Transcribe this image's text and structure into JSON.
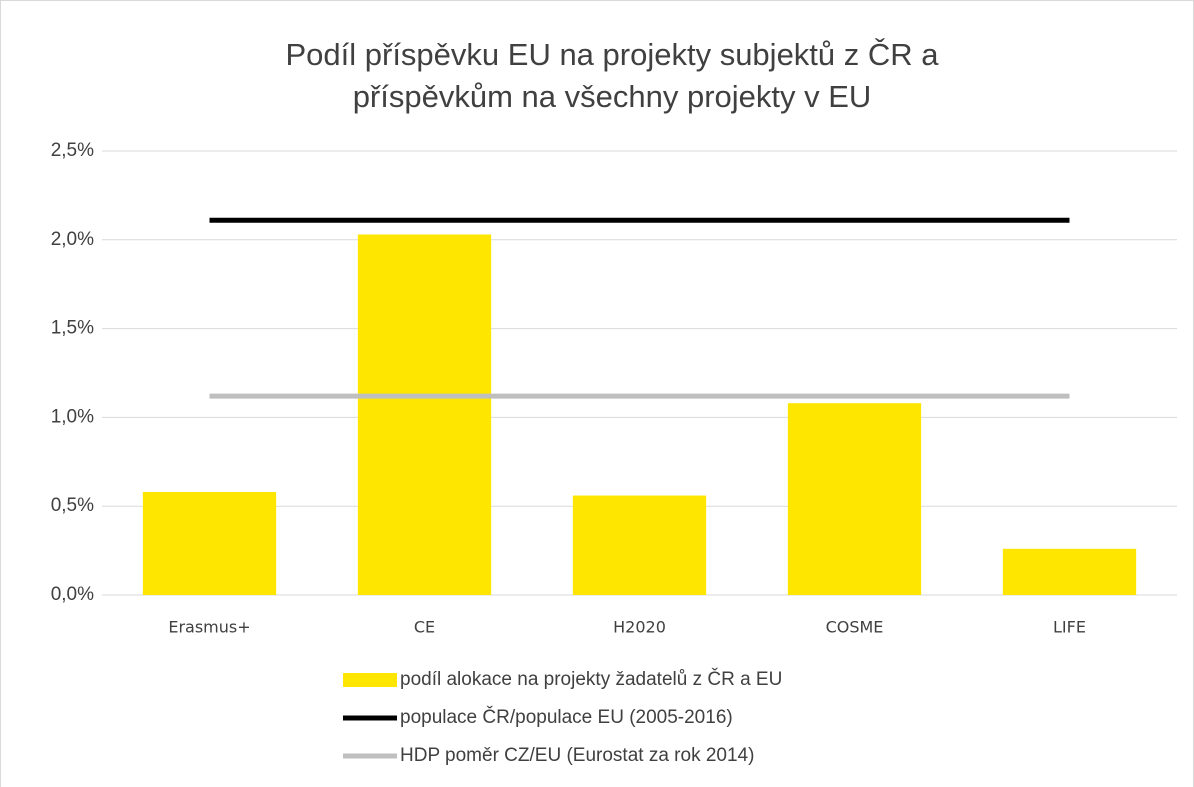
{
  "chart_data": {
    "type": "bar",
    "title": [
      "Podíl příspěvku EU na projekty subjektů z ČR a",
      "příspěvkům na všechny projekty v EU"
    ],
    "categories": [
      "Erasmus+",
      "CE",
      "H2020",
      "COSME",
      "LIFE"
    ],
    "series": [
      {
        "name": "podíl alokace na projekty žadatelů z ČR a EU",
        "type": "bar",
        "color": "#ffe600",
        "values": [
          0.58,
          2.03,
          0.56,
          1.08,
          0.26
        ]
      },
      {
        "name": "populace ČR/populace EU (2005-2016)",
        "type": "line",
        "color": "#000000",
        "values": [
          2.11,
          2.11,
          2.11,
          2.11,
          2.11
        ]
      },
      {
        "name": "HDP poměr CZ/EU (Eurostat za rok 2014)",
        "type": "line",
        "color": "#bfbfbf",
        "values": [
          1.12,
          1.12,
          1.12,
          1.12,
          1.12
        ]
      }
    ],
    "ylim": [
      0,
      2.5
    ],
    "yticks": [
      {
        "value": 0,
        "label": "0,0%"
      },
      {
        "value": 0.5,
        "label": "0,5%"
      },
      {
        "value": 1,
        "label": "1,0%"
      },
      {
        "value": 1.5,
        "label": "1,5%"
      },
      {
        "value": 2,
        "label": "2,0%"
      },
      {
        "value": 2.5,
        "label": "2,5%"
      }
    ],
    "grid": true,
    "legend": "bottom"
  }
}
